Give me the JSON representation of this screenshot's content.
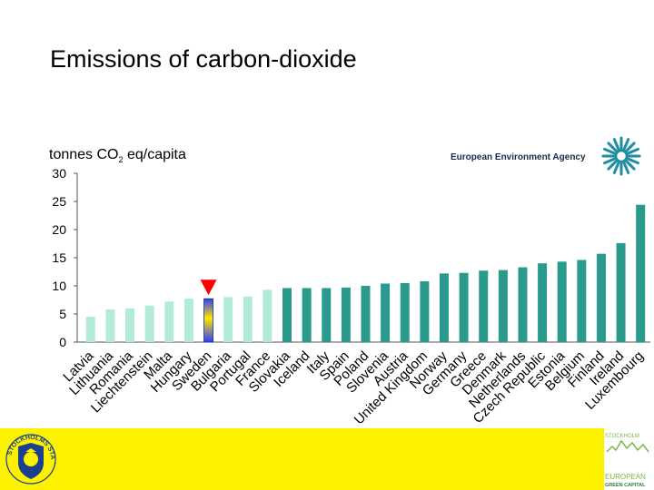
{
  "slide": {
    "title": "Emissions of carbon-dioxide",
    "agency_name": "European Environment Agency",
    "stockholm_crest_text": "STOCKHOLMS STAD",
    "green_capital": {
      "line1": "STOCKHOLM",
      "line2": "EUROPEAN",
      "line3": "GREEN CAPITAL"
    }
  },
  "colors": {
    "footer_band": "#fcf200",
    "bar_light": "#b4ebd7",
    "bar_dark": "#299a8c",
    "marker": "#ff0000",
    "agency_logo": "#1f8ea0"
  },
  "chart_data": {
    "type": "bar",
    "ylabel": "tonnes CO2 eq/capita",
    "ylim": [
      0,
      30
    ],
    "yticks": [
      0,
      5,
      10,
      15,
      20,
      25,
      30
    ],
    "highlight": "Sweden",
    "categories": [
      "Latvia",
      "Lithuania",
      "Romania",
      "Liechtenstein",
      "Malta",
      "Hungary",
      "Sweden",
      "Bulgaria",
      "Portugal",
      "France",
      "Slovakia",
      "Iceland",
      "Italy",
      "Spain",
      "Poland",
      "Slovenia",
      "Austria",
      "United Kingdom",
      "Norway",
      "Germany",
      "Greece",
      "Denmark",
      "Netherlands",
      "Czech Republic",
      "Estonia",
      "Belgium",
      "Finland",
      "Ireland",
      "Luxembourg"
    ],
    "values": [
      4.5,
      5.8,
      6.0,
      6.5,
      7.2,
      7.7,
      7.7,
      8.0,
      8.1,
      9.3,
      9.6,
      9.6,
      9.6,
      9.7,
      10.0,
      10.4,
      10.5,
      10.8,
      12.2,
      12.3,
      12.7,
      12.8,
      13.3,
      14.0,
      14.3,
      14.6,
      15.7,
      17.6,
      24.4
    ],
    "bar_shades": [
      "light",
      "light",
      "light",
      "light",
      "light",
      "light",
      "highlight",
      "light",
      "light",
      "light",
      "dark",
      "dark",
      "dark",
      "dark",
      "dark",
      "dark",
      "dark",
      "dark",
      "dark",
      "dark",
      "dark",
      "dark",
      "dark",
      "dark",
      "dark",
      "dark",
      "dark",
      "dark",
      "dark"
    ]
  }
}
